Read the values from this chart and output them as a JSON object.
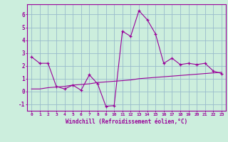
{
  "xlabel": "Windchill (Refroidissement éolien,°C)",
  "bg_color": "#cceedd",
  "line_color": "#990099",
  "grid_color": "#99bbcc",
  "hours": [
    0,
    1,
    2,
    3,
    4,
    5,
    6,
    7,
    8,
    9,
    10,
    11,
    12,
    13,
    14,
    15,
    16,
    17,
    18,
    19,
    20,
    21,
    22,
    23
  ],
  "temp_line": [
    2.7,
    2.2,
    2.2,
    0.4,
    0.2,
    0.5,
    0.1,
    1.3,
    0.6,
    -1.15,
    -1.1,
    4.7,
    4.3,
    6.3,
    5.6,
    4.5,
    2.2,
    2.6,
    2.1,
    2.2,
    2.1,
    2.2,
    1.6,
    1.4
  ],
  "ref_line": [
    0.2,
    0.2,
    0.3,
    0.35,
    0.4,
    0.5,
    0.55,
    0.6,
    0.7,
    0.75,
    0.8,
    0.85,
    0.9,
    1.0,
    1.05,
    1.1,
    1.15,
    1.2,
    1.25,
    1.3,
    1.35,
    1.4,
    1.45,
    1.5
  ],
  "ylim": [
    -1.5,
    6.8
  ],
  "xlim": [
    -0.5,
    23.5
  ],
  "yticks": [
    -1,
    0,
    1,
    2,
    3,
    4,
    5,
    6
  ],
  "xticks": [
    0,
    1,
    2,
    3,
    4,
    5,
    6,
    7,
    8,
    9,
    10,
    11,
    12,
    13,
    14,
    15,
    16,
    17,
    18,
    19,
    20,
    21,
    22,
    23
  ]
}
